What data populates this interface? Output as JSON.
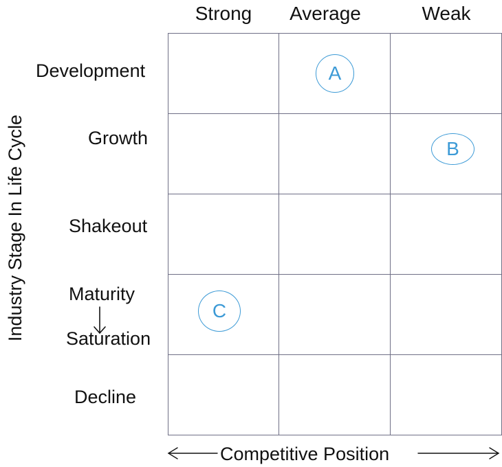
{
  "columns": [
    "Strong",
    "Average",
    "Weak"
  ],
  "rows": {
    "development": "Development",
    "growth": "Growth",
    "shakeout": "Shakeout",
    "maturity": "Maturity",
    "saturation": "Saturation",
    "decline": "Decline"
  },
  "axes": {
    "y_label": "Industry Stage In Life Cycle",
    "x_label": "Competitive Position"
  },
  "markers": [
    {
      "label": "A",
      "column": "Average",
      "row": "Development"
    },
    {
      "label": "B",
      "column": "Weak",
      "row": "Growth"
    },
    {
      "label": "C",
      "column": "Strong",
      "row": "Maturity / Saturation"
    }
  ],
  "colors": {
    "grid_line": "#6e6e85",
    "marker": "#3c9ad6",
    "text": "#111111"
  }
}
